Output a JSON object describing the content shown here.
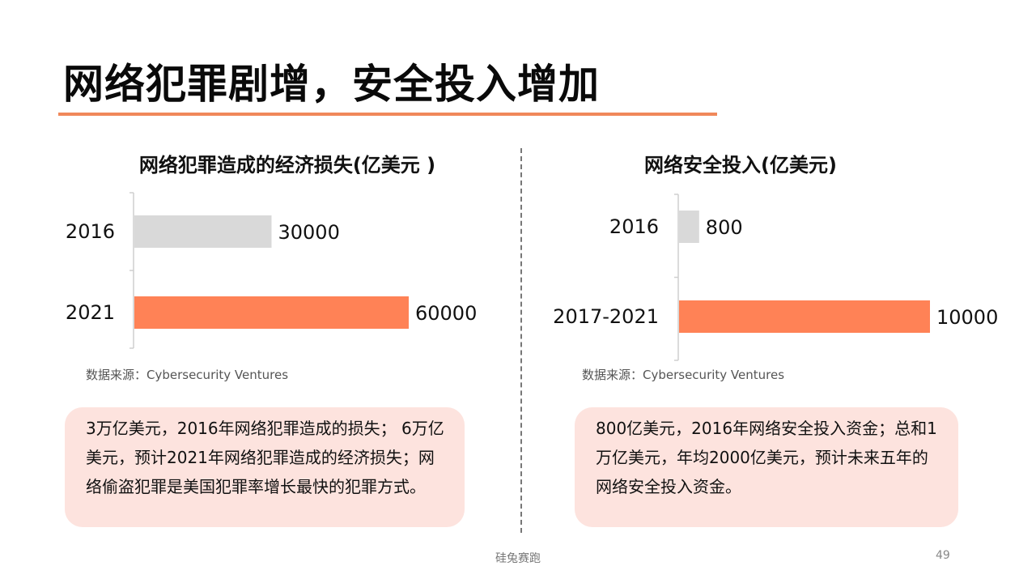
{
  "slide": {
    "title": "网络犯罪剧增，安全投入增加",
    "footer": "硅兔赛跑",
    "page_number": "49"
  },
  "colors": {
    "accent": "#f0885a",
    "bar_highlight": "#ff8256",
    "bar_muted": "#d9d9d9",
    "note_bg": "#fde3de"
  },
  "left_panel": {
    "source": "数据来源：Cybersecurity Ventures",
    "note": "3万亿美元，2016年网络犯罪造成的损失； 6万亿美元，预计2021年网络犯罪造成的经济损失；网络偷盗犯罪是美国犯罪率增长最快的犯罪方式。"
  },
  "right_panel": {
    "source": "数据来源：Cybersecurity Ventures",
    "note": "800亿美元，2016年网络安全投入资金；总和1万亿美元，年均2000亿美元，预计未来五年的网络安全投入资金。"
  },
  "chart_data": [
    {
      "type": "bar",
      "orientation": "horizontal",
      "title": "网络犯罪造成的经济损失(亿美元 )",
      "categories": [
        "2016",
        "2021"
      ],
      "values": [
        30000,
        60000
      ],
      "value_labels": [
        "30000",
        "60000"
      ],
      "bar_colors": [
        "#d9d9d9",
        "#ff8256"
      ],
      "xlim": [
        0,
        60000
      ],
      "grid": false,
      "legend": "none"
    },
    {
      "type": "bar",
      "orientation": "horizontal",
      "title": "网络安全投入(亿美元)",
      "categories": [
        "2016",
        "2017-2021"
      ],
      "values": [
        800,
        10000
      ],
      "value_labels": [
        "800",
        "10000"
      ],
      "bar_colors": [
        "#d9d9d9",
        "#ff8256"
      ],
      "xlim": [
        0,
        10000
      ],
      "grid": false,
      "legend": "none"
    }
  ]
}
